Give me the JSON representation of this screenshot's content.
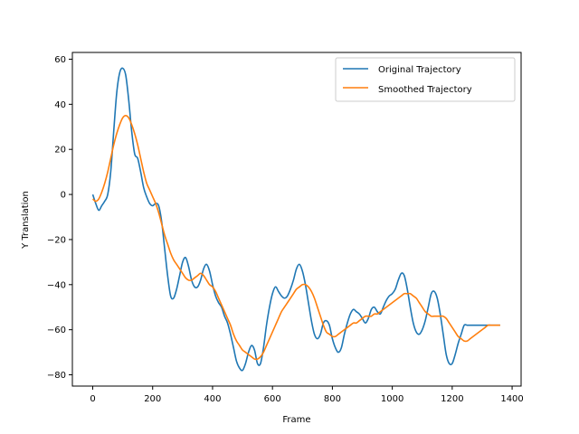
{
  "chart_data": {
    "type": "line",
    "xlabel": "Frame",
    "ylabel": "Y Translation",
    "xlim": [
      -68,
      1430
    ],
    "ylim": [
      -85,
      63
    ],
    "xticks": [
      0,
      200,
      400,
      600,
      800,
      1000,
      1200,
      1400
    ],
    "yticks": [
      -80,
      -60,
      -40,
      -20,
      0,
      20,
      40,
      60
    ],
    "grid": false,
    "legend_position": "top-right",
    "series": [
      {
        "name": "Original Trajectory",
        "color": "#1f77b4",
        "x": [
          0,
          10,
          20,
          30,
          40,
          50,
          60,
          70,
          80,
          90,
          100,
          110,
          120,
          130,
          140,
          150,
          160,
          170,
          180,
          190,
          200,
          210,
          220,
          230,
          240,
          250,
          260,
          270,
          280,
          290,
          300,
          310,
          320,
          330,
          340,
          350,
          360,
          370,
          380,
          390,
          400,
          410,
          420,
          430,
          440,
          450,
          460,
          470,
          480,
          490,
          500,
          510,
          520,
          530,
          540,
          550,
          560,
          570,
          580,
          590,
          600,
          610,
          620,
          630,
          640,
          650,
          660,
          670,
          680,
          690,
          700,
          710,
          720,
          730,
          740,
          750,
          760,
          770,
          780,
          790,
          800,
          810,
          820,
          830,
          840,
          850,
          860,
          870,
          880,
          890,
          900,
          910,
          920,
          930,
          940,
          950,
          960,
          970,
          980,
          990,
          1000,
          1010,
          1020,
          1030,
          1040,
          1050,
          1060,
          1070,
          1080,
          1090,
          1100,
          1110,
          1120,
          1130,
          1140,
          1150,
          1160,
          1170,
          1180,
          1190,
          1200,
          1210,
          1220,
          1230,
          1240,
          1250,
          1260,
          1270,
          1280,
          1290,
          1300,
          1310,
          1320,
          1330,
          1340,
          1350,
          1360
        ],
        "values": [
          0,
          -4,
          -7,
          -5,
          -3,
          0,
          10,
          28,
          45,
          54,
          56,
          53,
          42,
          28,
          18,
          16,
          10,
          3,
          -1,
          -4,
          -5,
          -4,
          -5,
          -12,
          -24,
          -36,
          -45,
          -46,
          -42,
          -36,
          -30,
          -28,
          -32,
          -38,
          -41,
          -41,
          -38,
          -33,
          -31,
          -34,
          -40,
          -45,
          -48,
          -50,
          -54,
          -57,
          -62,
          -68,
          -74,
          -77,
          -78,
          -75,
          -70,
          -67,
          -69,
          -75,
          -75,
          -68,
          -58,
          -50,
          -44,
          -41,
          -43,
          -45,
          -46,
          -45,
          -42,
          -38,
          -33,
          -31,
          -34,
          -40,
          -48,
          -56,
          -62,
          -64,
          -62,
          -57,
          -56,
          -58,
          -64,
          -68,
          -70,
          -68,
          -62,
          -57,
          -53,
          -51,
          -52,
          -53,
          -55,
          -57,
          -55,
          -51,
          -50,
          -52,
          -53,
          -50,
          -47,
          -45,
          -44,
          -42,
          -38,
          -35,
          -36,
          -42,
          -50,
          -57,
          -61,
          -62,
          -60,
          -56,
          -50,
          -44,
          -43,
          -46,
          -53,
          -62,
          -71,
          -75,
          -75,
          -71,
          -66,
          -62,
          -58,
          -58,
          -58,
          -58,
          -58,
          -58,
          -58,
          -58,
          -58,
          -58,
          -58,
          -58,
          -58
        ],
        "x_note": ""
      },
      {
        "name": "Smoothed Trajectory",
        "color": "#ff7f0e",
        "x": [
          0,
          10,
          20,
          30,
          40,
          50,
          60,
          70,
          80,
          90,
          100,
          110,
          120,
          130,
          140,
          150,
          160,
          170,
          180,
          190,
          200,
          210,
          220,
          230,
          240,
          250,
          260,
          270,
          280,
          290,
          300,
          310,
          320,
          330,
          340,
          350,
          360,
          370,
          380,
          390,
          400,
          410,
          420,
          430,
          440,
          450,
          460,
          470,
          480,
          490,
          500,
          510,
          520,
          530,
          540,
          550,
          560,
          570,
          580,
          590,
          600,
          610,
          620,
          630,
          640,
          650,
          660,
          670,
          680,
          690,
          700,
          710,
          720,
          730,
          740,
          750,
          760,
          770,
          780,
          790,
          800,
          810,
          820,
          830,
          840,
          850,
          860,
          870,
          880,
          890,
          900,
          910,
          920,
          930,
          940,
          950,
          960,
          970,
          980,
          990,
          1000,
          1010,
          1020,
          1030,
          1040,
          1050,
          1060,
          1070,
          1080,
          1090,
          1100,
          1110,
          1120,
          1130,
          1140,
          1150,
          1160,
          1170,
          1180,
          1190,
          1200,
          1210,
          1220,
          1230,
          1240,
          1250,
          1260,
          1270,
          1280,
          1290,
          1300,
          1310,
          1320,
          1330,
          1340,
          1350,
          1360
        ],
        "values": [
          -2,
          -3,
          -2,
          1,
          5,
          10,
          16,
          22,
          27,
          31,
          34,
          35,
          34,
          31,
          27,
          22,
          16,
          10,
          5,
          2,
          -1,
          -4,
          -8,
          -13,
          -18,
          -22,
          -26,
          -29,
          -31,
          -33,
          -35,
          -37,
          -38,
          -38,
          -37,
          -36,
          -35,
          -36,
          -38,
          -40,
          -41,
          -43,
          -46,
          -49,
          -52,
          -55,
          -58,
          -62,
          -65,
          -67,
          -69,
          -70,
          -71,
          -72,
          -73,
          -73,
          -72,
          -70,
          -67,
          -64,
          -61,
          -58,
          -55,
          -52,
          -50,
          -48,
          -46,
          -44,
          -42,
          -41,
          -40,
          -40,
          -41,
          -43,
          -46,
          -50,
          -54,
          -58,
          -61,
          -62,
          -63,
          -63,
          -62,
          -61,
          -60,
          -59,
          -58,
          -57,
          -57,
          -56,
          -55,
          -54,
          -54,
          -54,
          -53,
          -53,
          -52,
          -51,
          -50,
          -49,
          -48,
          -47,
          -46,
          -45,
          -44,
          -44,
          -44,
          -45,
          -46,
          -48,
          -50,
          -52,
          -53,
          -54,
          -54,
          -54,
          -54,
          -54,
          -55,
          -57,
          -59,
          -61,
          -63,
          -64,
          -65,
          -65,
          -64,
          -63,
          -62,
          -61,
          -60,
          -59,
          -58,
          -58,
          -58,
          -58,
          -58
        ],
        "x_note": ""
      }
    ]
  }
}
